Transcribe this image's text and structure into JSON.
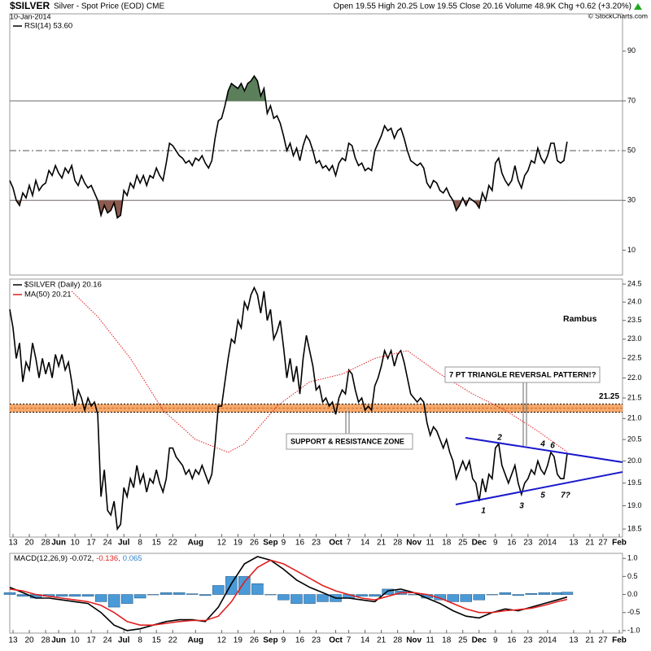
{
  "header": {
    "symbol": "$SILVER",
    "description": "Silver - Spot Price (EOD) CME",
    "date": "10-Jan-2014",
    "quote": "Open 19.55 High 20.25 Low 19.55 Close 20.16 Volume 48.9K Chg +0.62 (+3.20%)",
    "credit": "© StockCharts.com"
  },
  "chart_data": [
    {
      "type": "line",
      "title": "RSI(14) 53.60",
      "xlim": [
        0,
        188
      ],
      "ylim": [
        0,
        105
      ],
      "yticks": [
        10,
        30,
        50,
        70,
        90
      ],
      "levels": [
        {
          "value": 70,
          "style": "solid",
          "fill": "#5b7f5a",
          "side": "above"
        },
        {
          "value": 50,
          "style": "dashdot"
        },
        {
          "value": 30,
          "style": "solid",
          "fill": "#8c5a4e",
          "side": "below"
        }
      ],
      "series": [
        {
          "color": "#000000",
          "values": [
            38,
            35,
            30,
            28,
            33,
            31,
            36,
            32,
            38,
            34,
            36,
            37,
            42,
            40,
            44,
            41,
            39,
            43,
            41,
            44,
            38,
            36,
            40,
            37,
            35,
            36,
            33,
            30,
            24,
            28,
            25,
            26,
            29,
            23,
            24,
            34,
            32,
            37,
            35,
            40,
            37,
            40,
            36,
            40,
            39,
            43,
            40,
            38,
            45,
            53,
            52,
            50,
            48,
            47,
            45,
            46,
            44,
            47,
            46,
            48,
            45,
            43,
            46,
            55,
            62,
            63,
            68,
            74,
            77,
            76,
            75,
            77,
            74,
            77,
            78,
            80,
            78,
            72,
            75,
            65,
            68,
            63,
            64,
            61,
            56,
            50,
            53,
            48,
            51,
            46,
            52,
            56,
            54,
            50,
            45,
            46,
            43,
            44,
            42,
            44,
            40,
            45,
            47,
            46,
            53,
            52,
            47,
            44,
            45,
            42,
            43,
            42,
            50,
            53,
            56,
            60,
            58,
            59,
            55,
            58,
            59,
            55,
            50,
            46,
            45,
            44,
            45,
            43,
            37,
            35,
            38,
            37,
            34,
            33,
            35,
            32,
            30,
            26,
            28,
            31,
            28,
            31,
            30,
            29,
            27,
            33,
            30,
            36,
            34,
            45,
            47,
            41,
            38,
            36,
            38,
            44,
            38,
            35,
            40,
            42,
            46,
            45,
            51,
            47,
            45,
            48,
            53,
            53,
            46,
            45,
            46,
            53.6
          ]
        }
      ]
    },
    {
      "type": "line",
      "log_scale": true,
      "xlim": [
        0,
        188
      ],
      "ylim": [
        18.33,
        24.64
      ],
      "yticks": [
        18.5,
        {
          "value": 19,
          "label": "19.0"
        },
        19.5,
        {
          "value": 20,
          "label": "20.0"
        },
        20.5,
        {
          "value": 21,
          "label": "21.0"
        },
        21.5,
        {
          "value": 22,
          "label": "22.0"
        },
        22.5,
        {
          "value": 23,
          "label": "23.0"
        },
        23.5,
        {
          "value": 24,
          "label": "24.0"
        },
        24.5
      ],
      "xticks": [
        {
          "value": 1,
          "label": "13"
        },
        {
          "value": 6,
          "label": "20"
        },
        {
          "value": 11,
          "label": "28"
        },
        {
          "value": 15,
          "label": "Jun"
        },
        {
          "value": 20,
          "label": "10"
        },
        {
          "value": 25,
          "label": "17"
        },
        {
          "value": 30,
          "label": "24"
        },
        {
          "value": 35,
          "label": "Jul"
        },
        {
          "value": 40,
          "label": "8"
        },
        {
          "value": 45,
          "label": "15"
        },
        {
          "value": 50,
          "label": "22"
        },
        {
          "value": 57,
          "label": "Aug"
        },
        {
          "value": 65,
          "label": "12"
        },
        {
          "value": 70,
          "label": "19"
        },
        {
          "value": 75,
          "label": "26"
        },
        {
          "value": 80,
          "label": "Sep"
        },
        {
          "value": 84,
          "label": "9"
        },
        {
          "value": 89,
          "label": "16"
        },
        {
          "value": 94,
          "label": "23"
        },
        {
          "value": 100,
          "label": "Oct"
        },
        {
          "value": 104,
          "label": "7"
        },
        {
          "value": 109,
          "label": "14"
        },
        {
          "value": 114,
          "label": "21"
        },
        {
          "value": 119,
          "label": "28"
        },
        {
          "value": 124,
          "label": "Nov"
        },
        {
          "value": 129,
          "label": "11"
        },
        {
          "value": 134,
          "label": "18"
        },
        {
          "value": 139,
          "label": "25"
        },
        {
          "value": 144,
          "label": "Dec"
        },
        {
          "value": 149,
          "label": "9"
        },
        {
          "value": 154,
          "label": "16"
        },
        {
          "value": 159,
          "label": "23"
        },
        {
          "value": 165,
          "label": "2014"
        },
        {
          "value": 173,
          "label": "13"
        },
        {
          "value": 178,
          "label": "21"
        },
        {
          "value": 182,
          "label": "27"
        },
        {
          "value": 187,
          "label": "Feb"
        }
      ],
      "series": [
        {
          "name": "$SILVER (Daily) 20.16",
          "color": "#000000",
          "values": [
            23.8,
            23.3,
            22.5,
            22.9,
            21.9,
            22.4,
            22.2,
            22.9,
            22.5,
            22.0,
            22.5,
            22.1,
            22.4,
            22.0,
            22.6,
            22.3,
            22.6,
            22.2,
            22.4,
            21.9,
            21.3,
            21.7,
            21.5,
            21.2,
            21.5,
            21.3,
            21.4,
            21.1,
            19.2,
            19.8,
            18.9,
            18.8,
            19.1,
            18.5,
            18.6,
            19.4,
            19.2,
            19.6,
            19.4,
            19.9,
            19.5,
            19.7,
            19.3,
            19.6,
            19.5,
            19.8,
            19.5,
            19.3,
            19.6,
            20.3,
            20.3,
            20.1,
            20.0,
            19.9,
            19.7,
            19.8,
            19.6,
            19.8,
            19.7,
            19.9,
            19.7,
            19.5,
            19.7,
            20.4,
            21.3,
            21.3,
            21.9,
            22.5,
            23.0,
            22.9,
            23.5,
            23.3,
            24.0,
            23.8,
            24.2,
            24.4,
            24.2,
            23.7,
            24.3,
            23.5,
            23.8,
            23.0,
            23.2,
            23.5,
            22.8,
            22.0,
            22.5,
            21.9,
            22.3,
            21.6,
            22.5,
            23.1,
            22.7,
            22.3,
            21.7,
            21.8,
            21.4,
            21.5,
            21.3,
            21.4,
            21.1,
            21.5,
            21.7,
            21.6,
            22.2,
            22.1,
            21.7,
            21.4,
            21.5,
            21.2,
            21.3,
            21.2,
            21.8,
            22.0,
            22.3,
            22.7,
            22.5,
            22.7,
            22.3,
            22.6,
            22.7,
            22.4,
            22.0,
            21.6,
            21.5,
            21.4,
            21.5,
            21.4,
            20.9,
            20.6,
            20.8,
            20.7,
            20.5,
            20.3,
            20.5,
            20.2,
            20.0,
            19.6,
            19.8,
            20.0,
            19.8,
            20.0,
            19.6,
            19.5,
            19.1,
            19.6,
            19.3,
            19.7,
            19.6,
            20.3,
            20.4,
            19.9,
            19.7,
            19.5,
            19.7,
            19.9,
            19.5,
            19.25,
            19.5,
            19.6,
            19.8,
            19.7,
            20.0,
            19.8,
            19.7,
            19.9,
            20.2,
            20.1,
            19.7,
            19.6,
            19.6,
            20.16
          ]
        },
        {
          "name": "MA(50) 20.21",
          "color": "#e02020",
          "style": "dotted",
          "x": [
            19,
            27,
            37,
            47,
            57,
            67,
            72,
            82,
            92,
            102,
            112,
            122,
            132,
            142,
            152,
            162,
            171
          ],
          "values": [
            24.3,
            23.6,
            22.5,
            21.2,
            20.5,
            20.2,
            20.4,
            21.3,
            21.9,
            22.1,
            22.5,
            22.7,
            22.1,
            21.6,
            21.2,
            20.7,
            20.21
          ]
        }
      ],
      "annotations": [
        "Rambus",
        "7 PT TRIANGLE REVERSAL PATTERN!?",
        "SUPPORT & RESISTANCE ZONE"
      ],
      "support_zone": {
        "value": 21.25,
        "low": 21.15,
        "high": 21.35,
        "color": "#f6a96b"
      },
      "pattern_points": [
        "1",
        "2",
        "3",
        "4",
        "5",
        "6",
        "7?"
      ],
      "pattern_color": "#1a1acc"
    },
    {
      "type": "line",
      "xlim": [
        0,
        188
      ],
      "ylim": [
        -1.07,
        1.14
      ],
      "yticks": [
        {
          "value": -1,
          "label": "-1.0"
        },
        -0.5,
        {
          "value": 0,
          "label": "0.0"
        },
        0.5,
        {
          "value": 1,
          "label": "1.0"
        }
      ],
      "xticks": [
        {
          "value": 1,
          "label": "13"
        },
        {
          "value": 6,
          "label": "20"
        },
        {
          "value": 11,
          "label": "28"
        },
        {
          "value": 15,
          "label": "Jun"
        },
        {
          "value": 20,
          "label": "10"
        },
        {
          "value": 25,
          "label": "17"
        },
        {
          "value": 30,
          "label": "24"
        },
        {
          "value": 35,
          "label": "Jul"
        },
        {
          "value": 40,
          "label": "8"
        },
        {
          "value": 45,
          "label": "15"
        },
        {
          "value": 50,
          "label": "22"
        },
        {
          "value": 57,
          "label": "Aug"
        },
        {
          "value": 65,
          "label": "12"
        },
        {
          "value": 70,
          "label": "19"
        },
        {
          "value": 75,
          "label": "26"
        },
        {
          "value": 80,
          "label": "Sep"
        },
        {
          "value": 84,
          "label": "9"
        },
        {
          "value": 89,
          "label": "16"
        },
        {
          "value": 94,
          "label": "23"
        },
        {
          "value": 100,
          "label": "Oct"
        },
        {
          "value": 104,
          "label": "7"
        },
        {
          "value": 109,
          "label": "14"
        },
        {
          "value": 114,
          "label": "21"
        },
        {
          "value": 119,
          "label": "28"
        },
        {
          "value": 124,
          "label": "Nov"
        },
        {
          "value": 129,
          "label": "11"
        },
        {
          "value": 134,
          "label": "18"
        },
        {
          "value": 139,
          "label": "25"
        },
        {
          "value": 144,
          "label": "Dec"
        },
        {
          "value": 149,
          "label": "9"
        },
        {
          "value": 154,
          "label": "16"
        },
        {
          "value": 159,
          "label": "23"
        },
        {
          "value": 165,
          "label": "2014"
        },
        {
          "value": 173,
          "label": "13"
        },
        {
          "value": 178,
          "label": "21"
        },
        {
          "value": 182,
          "label": "27"
        },
        {
          "value": 187,
          "label": "Feb"
        }
      ],
      "legend": [
        {
          "text": "MACD(12,26,9) -0.072,",
          "color": "#000000"
        },
        {
          "text": "-0.136,",
          "color": "#e02020"
        },
        {
          "text": "0.065",
          "color": "#2f80cc"
        }
      ],
      "series": [
        {
          "type": "bar",
          "color": "#4a9ad8",
          "x": [
            0,
            4,
            8,
            12,
            16,
            20,
            24,
            28,
            32,
            36,
            40,
            44,
            48,
            52,
            56,
            60,
            64,
            68,
            72,
            76,
            80,
            84,
            88,
            92,
            96,
            100,
            104,
            108,
            112,
            116,
            120,
            124,
            128,
            132,
            136,
            140,
            144,
            148,
            152,
            156,
            160,
            164,
            168,
            171
          ],
          "values": [
            0.05,
            -0.05,
            -0.1,
            -0.05,
            -0.05,
            -0.05,
            -0.05,
            -0.2,
            -0.35,
            -0.25,
            -0.1,
            0.0,
            0.05,
            0.05,
            0.02,
            -0.03,
            0.25,
            0.5,
            0.5,
            0.3,
            0.0,
            -0.15,
            -0.25,
            -0.25,
            -0.2,
            -0.2,
            -0.1,
            -0.05,
            -0.05,
            0.15,
            0.1,
            0.0,
            -0.1,
            -0.15,
            -0.2,
            -0.2,
            -0.15,
            0.0,
            0.05,
            -0.03,
            0.03,
            0.05,
            0.05,
            0.065
          ]
        },
        {
          "color": "#000000",
          "x": [
            0,
            4,
            8,
            12,
            16,
            20,
            24,
            28,
            32,
            36,
            40,
            44,
            48,
            52,
            56,
            60,
            64,
            68,
            72,
            76,
            80,
            84,
            88,
            92,
            96,
            100,
            104,
            108,
            112,
            116,
            120,
            124,
            128,
            132,
            136,
            140,
            144,
            148,
            152,
            156,
            160,
            164,
            168,
            171
          ],
          "values": [
            0.2,
            0.05,
            -0.1,
            -0.1,
            -0.15,
            -0.2,
            -0.25,
            -0.5,
            -0.85,
            -1.0,
            -0.95,
            -0.85,
            -0.75,
            -0.7,
            -0.7,
            -0.75,
            -0.35,
            0.3,
            0.85,
            1.05,
            0.95,
            0.7,
            0.4,
            0.2,
            0.05,
            -0.1,
            -0.1,
            -0.15,
            -0.2,
            0.1,
            0.15,
            0.05,
            -0.1,
            -0.25,
            -0.45,
            -0.6,
            -0.65,
            -0.5,
            -0.4,
            -0.45,
            -0.35,
            -0.25,
            -0.15,
            -0.072
          ]
        },
        {
          "color": "#e02020",
          "x": [
            0,
            4,
            8,
            12,
            16,
            20,
            24,
            28,
            32,
            36,
            40,
            44,
            48,
            52,
            56,
            60,
            64,
            68,
            72,
            76,
            80,
            84,
            88,
            92,
            96,
            100,
            104,
            108,
            112,
            116,
            120,
            124,
            128,
            132,
            136,
            140,
            144,
            148,
            152,
            156,
            160,
            164,
            168,
            171
          ],
          "values": [
            0.15,
            0.1,
            0.0,
            -0.05,
            -0.1,
            -0.15,
            -0.2,
            -0.3,
            -0.5,
            -0.75,
            -0.85,
            -0.85,
            -0.8,
            -0.75,
            -0.72,
            -0.72,
            -0.6,
            -0.2,
            0.35,
            0.75,
            0.95,
            0.85,
            0.65,
            0.45,
            0.25,
            0.1,
            0.0,
            -0.1,
            -0.15,
            -0.05,
            0.05,
            0.05,
            0.0,
            -0.1,
            -0.25,
            -0.4,
            -0.5,
            -0.5,
            -0.45,
            -0.42,
            -0.38,
            -0.3,
            -0.2,
            -0.136
          ]
        }
      ]
    }
  ]
}
